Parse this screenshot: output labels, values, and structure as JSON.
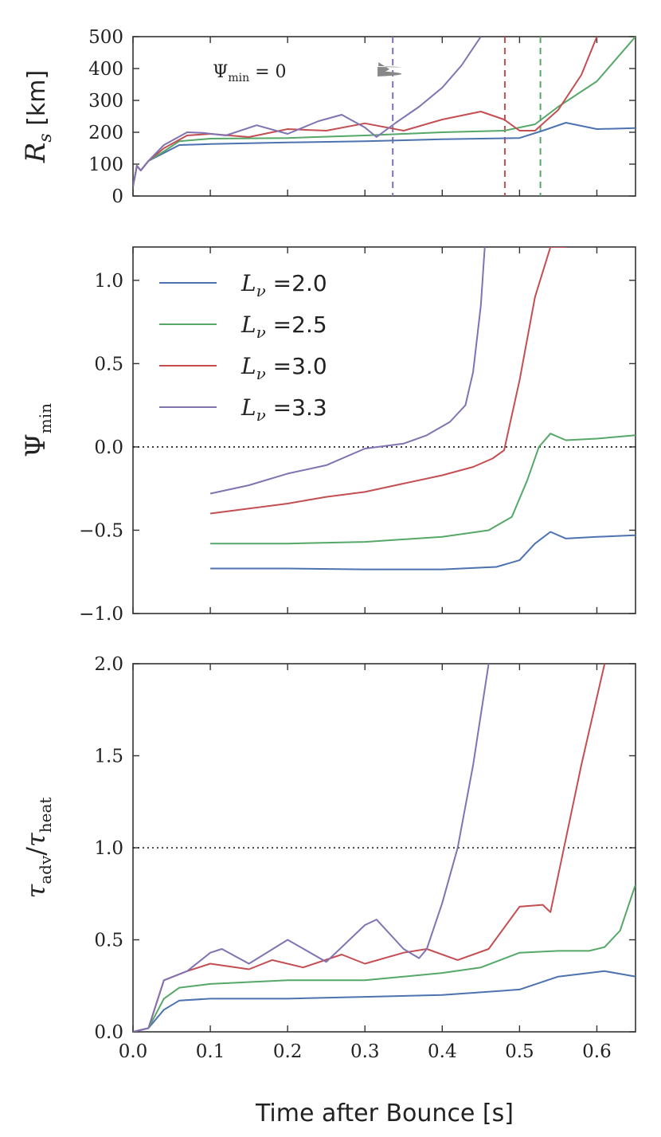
{
  "figure": {
    "xlabel": "Time after Bounce [s]",
    "annotation": "Ψmin = 0"
  },
  "colors": {
    "L2.0": "#4c72b0",
    "L2.5": "#55a868",
    "L3.0": "#c44e52",
    "L3.3": "#8172b2"
  },
  "chart_data": [
    {
      "type": "line",
      "panel": "top",
      "ylabel": "R_s [km]",
      "ylabel_text": "km",
      "xlim": [
        0,
        0.65
      ],
      "ylim": [
        0,
        500
      ],
      "xticks": [
        0.0,
        0.1,
        0.2,
        0.3,
        0.4,
        0.5,
        0.6
      ],
      "yticks": [
        0,
        100,
        200,
        300,
        400,
        500
      ],
      "vlines": [
        {
          "x": 0.336,
          "series": "L3.3"
        },
        {
          "x": 0.481,
          "series": "L3.0"
        },
        {
          "x": 0.527,
          "series": "L2.5"
        }
      ],
      "annotation": {
        "text": "Ψmin = 0",
        "xy": [
          0.336,
          405
        ],
        "xytext": [
          0.1,
          425
        ]
      },
      "series": [
        {
          "name": "Lν =2.0",
          "key": "L2.0",
          "x": [
            0,
            0.005,
            0.01,
            0.02,
            0.04,
            0.06,
            0.1,
            0.2,
            0.3,
            0.4,
            0.45,
            0.5,
            0.53,
            0.56,
            0.6,
            0.65
          ],
          "y": [
            30,
            95,
            80,
            110,
            135,
            160,
            163,
            168,
            172,
            178,
            180,
            182,
            205,
            230,
            210,
            213
          ]
        },
        {
          "name": "Lν =2.5",
          "key": "L2.5",
          "x": [
            0,
            0.005,
            0.01,
            0.02,
            0.04,
            0.06,
            0.1,
            0.2,
            0.3,
            0.4,
            0.48,
            0.52,
            0.55,
            0.6,
            0.65
          ],
          "y": [
            30,
            95,
            80,
            110,
            140,
            172,
            180,
            182,
            190,
            200,
            205,
            225,
            280,
            360,
            500
          ]
        },
        {
          "name": "Lν =3.0",
          "key": "L3.0",
          "x": [
            0,
            0.005,
            0.01,
            0.02,
            0.04,
            0.07,
            0.1,
            0.15,
            0.2,
            0.25,
            0.3,
            0.35,
            0.4,
            0.45,
            0.48,
            0.5,
            0.52,
            0.55,
            0.58,
            0.6
          ],
          "y": [
            30,
            95,
            80,
            110,
            150,
            190,
            195,
            185,
            210,
            205,
            228,
            205,
            240,
            265,
            240,
            205,
            205,
            270,
            380,
            500
          ]
        },
        {
          "name": "Lν =3.3",
          "key": "L3.3",
          "x": [
            0,
            0.005,
            0.01,
            0.02,
            0.04,
            0.07,
            0.09,
            0.12,
            0.16,
            0.2,
            0.24,
            0.27,
            0.3,
            0.315,
            0.34,
            0.37,
            0.4,
            0.425,
            0.45
          ],
          "y": [
            30,
            95,
            80,
            110,
            160,
            200,
            198,
            190,
            222,
            195,
            235,
            255,
            215,
            185,
            230,
            280,
            340,
            410,
            500
          ]
        }
      ]
    },
    {
      "type": "line",
      "panel": "middle",
      "ylabel": "Ψmin",
      "xlim": [
        0,
        0.65
      ],
      "ylim": [
        -1.0,
        1.2
      ],
      "xticks": [
        0.0,
        0.1,
        0.2,
        0.3,
        0.4,
        0.5,
        0.6
      ],
      "yticks": [
        -1.0,
        -0.5,
        0.0,
        0.5,
        1.0
      ],
      "ytick_labels": [
        "−1.0",
        "−0.5",
        "0.0",
        "0.5",
        "1.0"
      ],
      "hline": 0.0,
      "legend_position": "upper-left",
      "legend": [
        "Lν =2.0",
        "Lν =2.5",
        "Lν =3.0",
        "Lν =3.3"
      ],
      "series": [
        {
          "name": "Lν =2.0",
          "key": "L2.0",
          "x": [
            0.1,
            0.2,
            0.3,
            0.4,
            0.47,
            0.5,
            0.52,
            0.54,
            0.56,
            0.6,
            0.65
          ],
          "y": [
            -0.73,
            -0.73,
            -0.735,
            -0.735,
            -0.72,
            -0.68,
            -0.58,
            -0.51,
            -0.55,
            -0.54,
            -0.53
          ]
        },
        {
          "name": "Lν =2.5",
          "key": "L2.5",
          "x": [
            0.1,
            0.2,
            0.3,
            0.4,
            0.46,
            0.49,
            0.51,
            0.525,
            0.54,
            0.56,
            0.6,
            0.65
          ],
          "y": [
            -0.58,
            -0.58,
            -0.57,
            -0.54,
            -0.5,
            -0.42,
            -0.2,
            0.0,
            0.08,
            0.04,
            0.05,
            0.07
          ]
        },
        {
          "name": "Lν =3.0",
          "key": "L3.0",
          "x": [
            0.1,
            0.15,
            0.2,
            0.25,
            0.3,
            0.35,
            0.4,
            0.44,
            0.465,
            0.48,
            0.5,
            0.52,
            0.54,
            0.56
          ],
          "y": [
            -0.4,
            -0.37,
            -0.34,
            -0.3,
            -0.27,
            -0.22,
            -0.17,
            -0.12,
            -0.07,
            -0.02,
            0.4,
            0.9,
            1.2,
            1.2
          ]
        },
        {
          "name": "Lν =3.3",
          "key": "L3.3",
          "x": [
            0.1,
            0.15,
            0.2,
            0.25,
            0.3,
            0.35,
            0.38,
            0.41,
            0.43,
            0.44,
            0.45,
            0.455
          ],
          "y": [
            -0.28,
            -0.23,
            -0.16,
            -0.11,
            -0.01,
            0.02,
            0.07,
            0.15,
            0.25,
            0.45,
            0.85,
            1.2
          ]
        }
      ]
    },
    {
      "type": "line",
      "panel": "bottom",
      "ylabel": "τadv/τheat",
      "xlim": [
        0,
        0.65
      ],
      "ylim": [
        0,
        2.0
      ],
      "xticks": [
        0.0,
        0.1,
        0.2,
        0.3,
        0.4,
        0.5,
        0.6
      ],
      "yticks": [
        0.0,
        0.5,
        1.0,
        1.5,
        2.0
      ],
      "hline": 1.0,
      "series": [
        {
          "name": "Lν =2.0",
          "key": "L2.0",
          "x": [
            0.0,
            0.02,
            0.04,
            0.06,
            0.1,
            0.2,
            0.3,
            0.4,
            0.5,
            0.55,
            0.61,
            0.65
          ],
          "y": [
            0.0,
            0.02,
            0.12,
            0.17,
            0.18,
            0.18,
            0.19,
            0.2,
            0.23,
            0.3,
            0.33,
            0.3
          ]
        },
        {
          "name": "Lν =2.5",
          "key": "L2.5",
          "x": [
            0.0,
            0.02,
            0.04,
            0.06,
            0.1,
            0.2,
            0.3,
            0.4,
            0.45,
            0.5,
            0.55,
            0.59,
            0.61,
            0.63,
            0.65
          ],
          "y": [
            0.0,
            0.02,
            0.18,
            0.24,
            0.26,
            0.28,
            0.28,
            0.32,
            0.35,
            0.43,
            0.44,
            0.44,
            0.46,
            0.55,
            0.8
          ]
        },
        {
          "name": "Lν =3.0",
          "key": "L3.0",
          "x": [
            0.0,
            0.02,
            0.04,
            0.07,
            0.1,
            0.15,
            0.18,
            0.22,
            0.27,
            0.3,
            0.35,
            0.38,
            0.42,
            0.46,
            0.5,
            0.53,
            0.54,
            0.55,
            0.58,
            0.61
          ],
          "y": [
            0.0,
            0.02,
            0.28,
            0.33,
            0.37,
            0.34,
            0.39,
            0.35,
            0.42,
            0.37,
            0.43,
            0.45,
            0.39,
            0.45,
            0.68,
            0.69,
            0.65,
            0.85,
            1.45,
            2.0
          ]
        },
        {
          "name": "Lν =3.3",
          "key": "L3.3",
          "x": [
            0.0,
            0.02,
            0.04,
            0.07,
            0.1,
            0.115,
            0.15,
            0.2,
            0.25,
            0.3,
            0.315,
            0.35,
            0.37,
            0.38,
            0.4,
            0.42,
            0.44,
            0.46
          ],
          "y": [
            0.0,
            0.02,
            0.28,
            0.33,
            0.43,
            0.45,
            0.37,
            0.5,
            0.38,
            0.58,
            0.61,
            0.45,
            0.4,
            0.45,
            0.7,
            1.0,
            1.45,
            2.0
          ]
        }
      ]
    }
  ]
}
